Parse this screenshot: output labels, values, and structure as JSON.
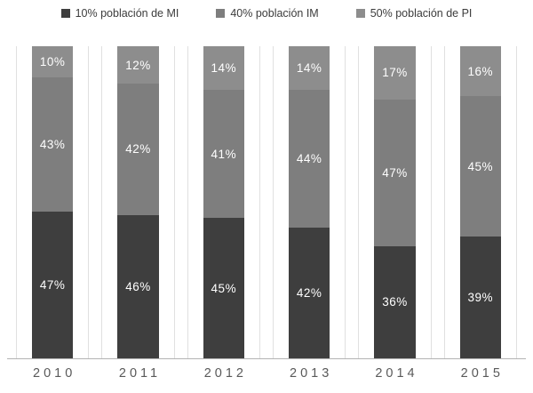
{
  "chart_data": {
    "type": "bar",
    "stacked": true,
    "orientation": "vertical",
    "title": "",
    "xlabel": "",
    "ylabel": "",
    "ylim": [
      0,
      100
    ],
    "value_suffix": "%",
    "legend_position": "top",
    "grid": "vertical-category-separators",
    "categories": [
      "2010",
      "2011",
      "2012",
      "2013",
      "2014",
      "2015"
    ],
    "series": [
      {
        "name": "10% población de MI",
        "color": "#3e3e3e",
        "values": [
          47,
          46,
          45,
          42,
          36,
          39
        ]
      },
      {
        "name": "40% población IM",
        "color": "#7e7e7e",
        "values": [
          43,
          42,
          41,
          44,
          47,
          45
        ]
      },
      {
        "name": "50% población de PI",
        "color": "#8d8d8d",
        "values": [
          10,
          12,
          14,
          14,
          17,
          16
        ]
      }
    ],
    "colors": {
      "data_label": "#ffffff",
      "axis_line": "#b3b3b3",
      "separator_line": "#e0e0e0",
      "tick_label": "#595959",
      "legend_text": "#3c3c3c",
      "background": "#ffffff"
    }
  }
}
